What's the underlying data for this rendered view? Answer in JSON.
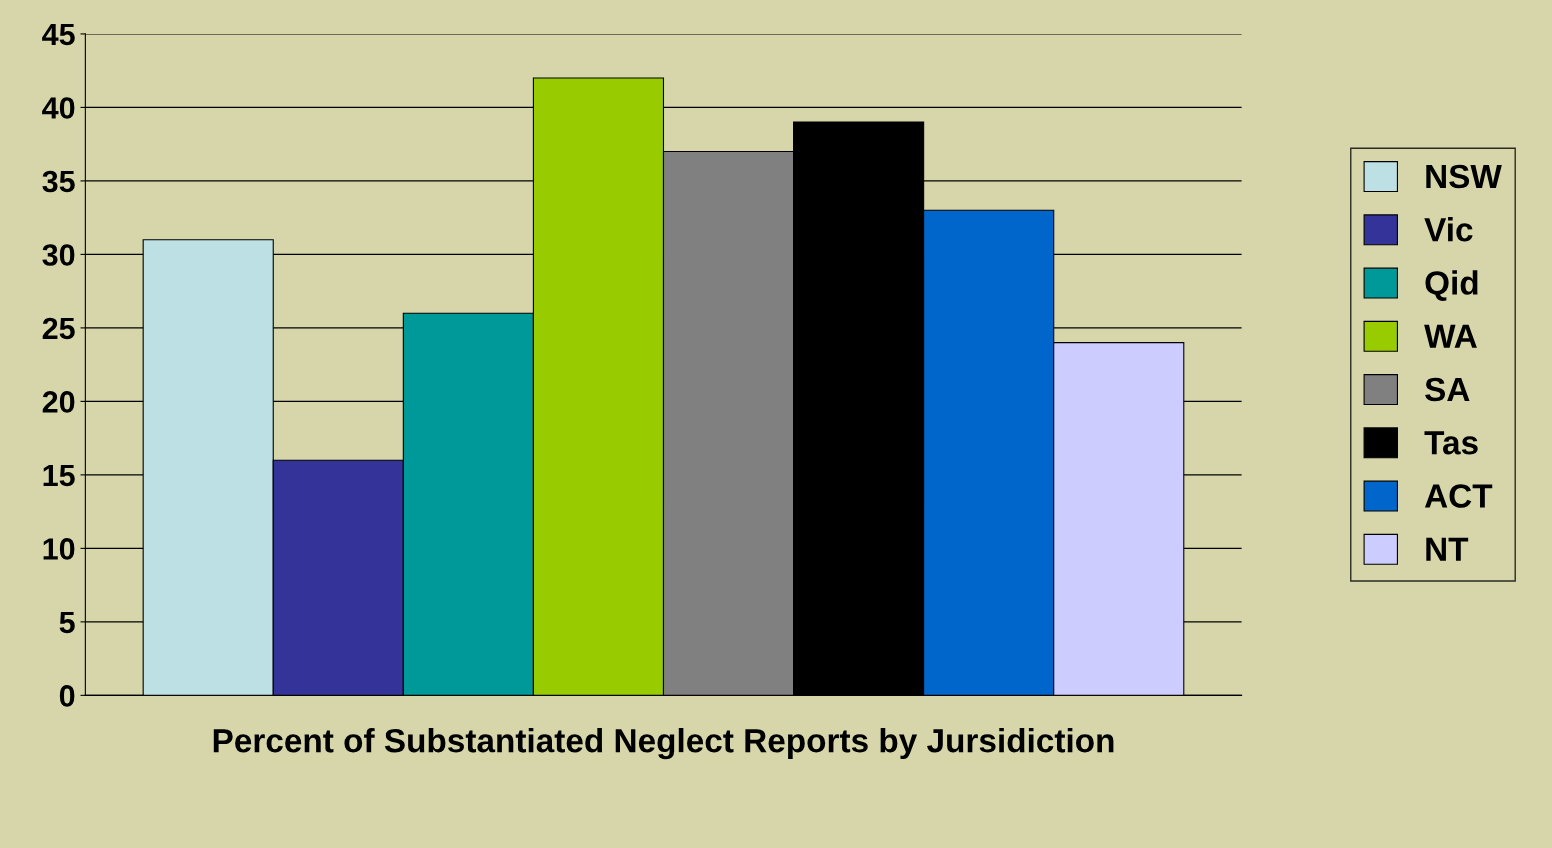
{
  "chart_data": {
    "type": "bar",
    "xlabel": "Percent of Substantiated Neglect Reports by Jursidiction",
    "categories": [
      null
    ],
    "series": [
      {
        "name": "NSW",
        "color": "#bce0e4",
        "values": [
          31
        ]
      },
      {
        "name": "Vic",
        "color": "#333399",
        "values": [
          16
        ]
      },
      {
        "name": "Qid",
        "color": "#009999",
        "values": [
          26
        ]
      },
      {
        "name": "WA",
        "color": "#99cc00",
        "values": [
          42
        ]
      },
      {
        "name": "SA",
        "color": "#808080",
        "values": [
          37
        ]
      },
      {
        "name": "Tas",
        "color": "#000000",
        "values": [
          39
        ]
      },
      {
        "name": "ACT",
        "color": "#0066cc",
        "values": [
          33
        ]
      },
      {
        "name": "NT",
        "color": "#ccccff",
        "values": [
          24
        ]
      }
    ],
    "ylim": [
      0,
      45
    ],
    "yticks": [
      0,
      5,
      10,
      15,
      20,
      25,
      30,
      35,
      40,
      45
    ],
    "grid": "y",
    "legend": "right"
  }
}
